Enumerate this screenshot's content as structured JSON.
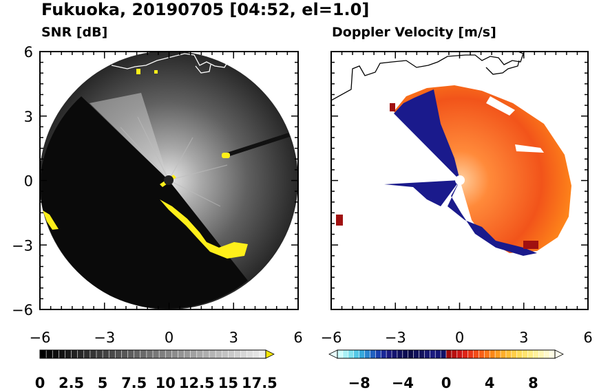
{
  "title": "Fukuoka, 20190705 [04:52, el=1.0]",
  "panels": [
    {
      "title": "SNR [dB]"
    },
    {
      "title": "Doppler Velocity [m/s]"
    }
  ],
  "colors": {
    "snr_flag": "#ffef1a",
    "coast": "#ffffff",
    "coast_right": "#000000",
    "vel_pos": "#ff6a1a",
    "vel_neg": "#1a1a8c"
  },
  "chart_data": [
    {
      "type": "heatmap",
      "title": "SNR [dB]",
      "x_ticks": [
        "−6",
        "−3",
        "0",
        "3",
        "6"
      ],
      "y_ticks": [
        "6",
        "3",
        "0",
        "−3",
        "−6"
      ],
      "xlim": [
        -6,
        6
      ],
      "ylim": [
        -6,
        6
      ],
      "colorbar": {
        "ticks": [
          "0",
          "2.5",
          "5",
          "7.5",
          "10",
          "12.5",
          "15",
          "17.5"
        ],
        "range": [
          0,
          18
        ],
        "extend": "max"
      }
    },
    {
      "type": "heatmap",
      "title": "Doppler Velocity [m/s]",
      "x_ticks": [
        "−6",
        "−3",
        "0",
        "3",
        "6"
      ],
      "xlim": [
        -6,
        6
      ],
      "ylim": [
        -6,
        6
      ],
      "colorbar": {
        "ticks": [
          "−8",
          "−4",
          "0",
          "4",
          "8"
        ],
        "range": [
          -10,
          10
        ],
        "extend": "both"
      }
    }
  ]
}
